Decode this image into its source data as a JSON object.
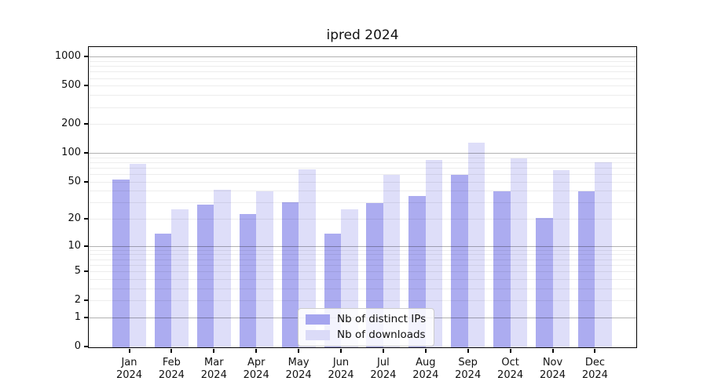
{
  "title": "ipred 2024",
  "chart_data": {
    "type": "bar",
    "title": "ipred 2024",
    "categories": [
      "Jan",
      "Feb",
      "Mar",
      "Apr",
      "May",
      "Jun",
      "Jul",
      "Aug",
      "Sep",
      "Oct",
      "Nov",
      "Dec"
    ],
    "category_year": "2024",
    "series": [
      {
        "name": "Nb of distinct IPs",
        "color": "#a5a5ef",
        "values": [
          54,
          14,
          29,
          23,
          31,
          14,
          30,
          36,
          60,
          40,
          21,
          40
        ]
      },
      {
        "name": "Nb of downloads",
        "color": "#dbdbf8",
        "values": [
          78,
          26,
          42,
          40,
          68,
          26,
          60,
          86,
          130,
          90,
          67,
          82
        ]
      }
    ],
    "xlabel": "",
    "ylabel": "",
    "yscale": "log10(1+value)",
    "yticks": [
      0,
      1,
      2,
      5,
      10,
      20,
      50,
      100,
      200,
      500,
      1000
    ],
    "major_grid_values": [
      1,
      10,
      100,
      1000
    ],
    "ylim": [
      0,
      1259
    ],
    "grid": true,
    "legend_position": "lower center"
  }
}
